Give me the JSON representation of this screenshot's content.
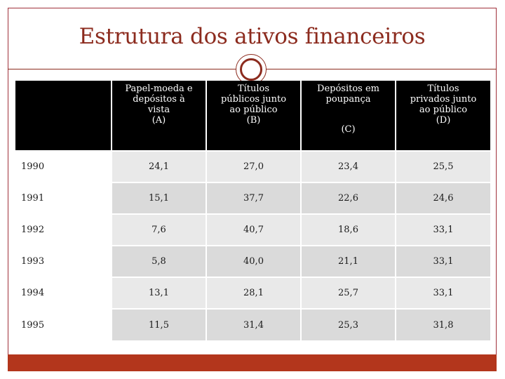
{
  "slide": {
    "title": "Estrutura dos ativos financeiros"
  },
  "table": {
    "headers": [
      {
        "lines": [
          "Papel-moeda e",
          "depósitos à",
          "vista",
          "(A)"
        ]
      },
      {
        "lines": [
          "Títulos",
          "públicos junto",
          "ao público",
          "(B)"
        ]
      },
      {
        "lines": [
          "Depósitos em",
          "poupança",
          "(C)"
        ]
      },
      {
        "lines": [
          "Títulos",
          "privados junto",
          "ao público",
          "(D)"
        ]
      }
    ],
    "rows": [
      {
        "year": "1990",
        "values": [
          "24,1",
          "27,0",
          "23,4",
          "25,5"
        ]
      },
      {
        "year": "1991",
        "values": [
          "15,1",
          "37,7",
          "22,6",
          "24,6"
        ]
      },
      {
        "year": "1992",
        "values": [
          "7,6",
          "40,7",
          "18,6",
          "33,1"
        ]
      },
      {
        "year": "1993",
        "values": [
          "5,8",
          "40,0",
          "21,1",
          "33,1"
        ]
      },
      {
        "year": "1994",
        "values": [
          "13,1",
          "28,1",
          "25,7",
          "33,1"
        ]
      },
      {
        "year": "1995",
        "values": [
          "11,5",
          "31,4",
          "25,3",
          "31,8"
        ]
      }
    ]
  },
  "colors": {
    "title": "#8c2b1e",
    "footer_bar": "#b3361c",
    "header_bg": "#000000"
  }
}
